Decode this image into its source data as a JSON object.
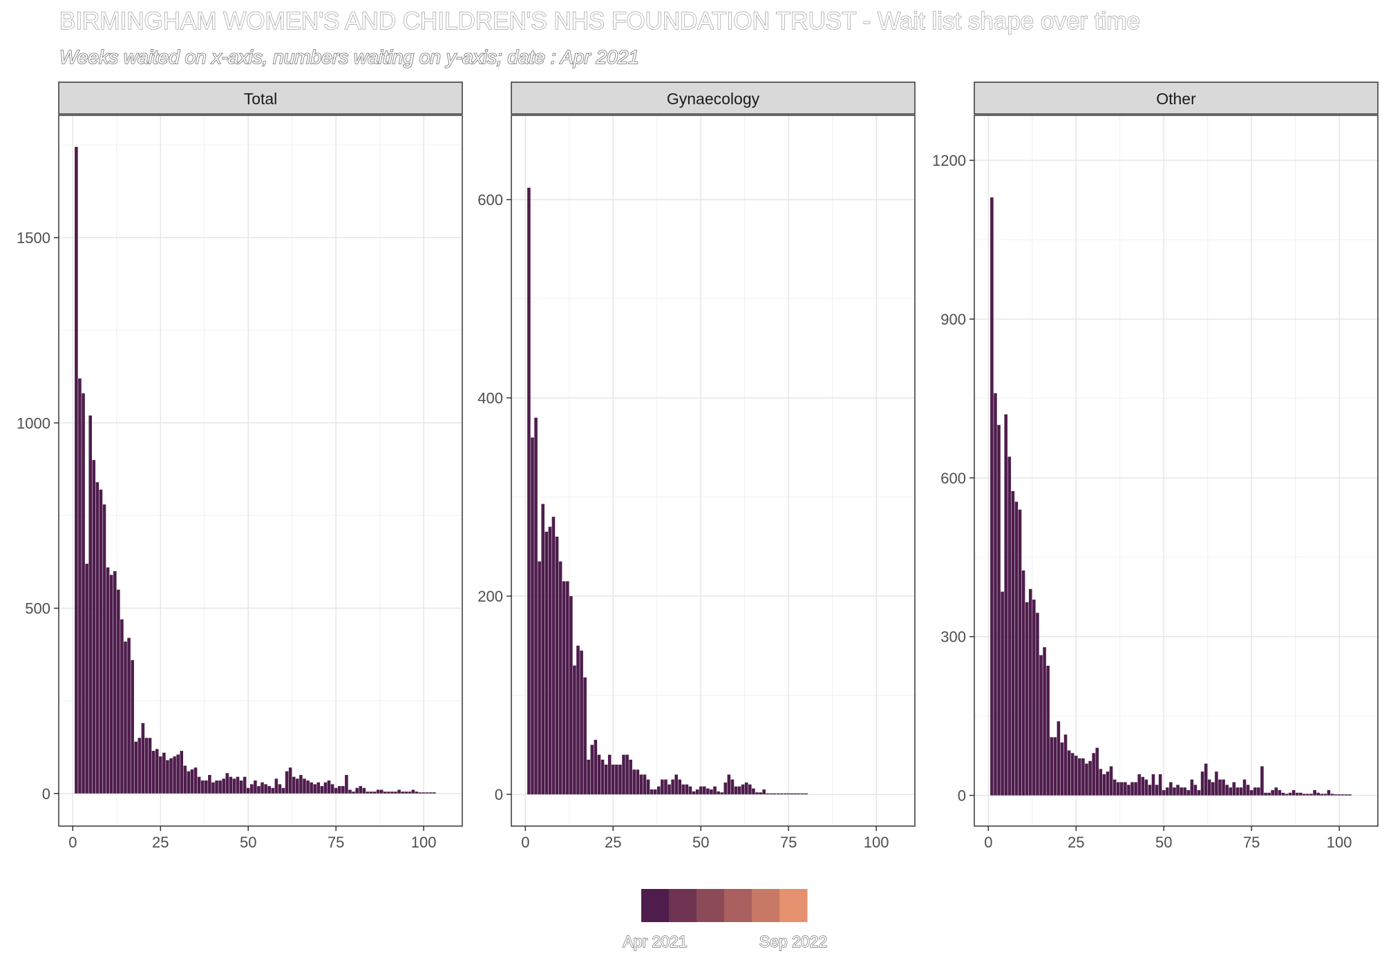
{
  "chart_data": {
    "type": "bar",
    "title": "BIRMINGHAM WOMEN'S AND CHILDREN'S NHS FOUNDATION TRUST - Wait list shape over time",
    "subtitle": "Weeks waited on x-axis, numbers waiting on y-axis; date : Apr 2021",
    "bar_color": "#4e1d4c",
    "legend": {
      "placement": "bottom",
      "colors": [
        "#4e1d4c",
        "#6e3452",
        "#8c4a58",
        "#a9605e",
        "#c77966",
        "#e5906e"
      ],
      "labels": [
        "Apr 2021",
        "Sep 2022"
      ]
    },
    "panels": [
      {
        "name": "Total",
        "xlim": [
          -4,
          111
        ],
        "ylim": [
          -88,
          1830
        ],
        "xticks": [
          0,
          25,
          50,
          75,
          100
        ],
        "yticks": [
          0,
          500,
          1000,
          1500
        ],
        "x": [
          1,
          2,
          3,
          4,
          5,
          6,
          7,
          8,
          9,
          10,
          11,
          12,
          13,
          14,
          15,
          16,
          17,
          18,
          19,
          20,
          21,
          22,
          23,
          24,
          25,
          26,
          27,
          28,
          29,
          30,
          31,
          32,
          33,
          34,
          35,
          36,
          37,
          38,
          39,
          40,
          41,
          42,
          43,
          44,
          45,
          46,
          47,
          48,
          49,
          50,
          51,
          52,
          53,
          54,
          55,
          56,
          57,
          58,
          59,
          60,
          61,
          62,
          63,
          64,
          65,
          66,
          67,
          68,
          69,
          70,
          71,
          72,
          73,
          74,
          75,
          76,
          77,
          78,
          79,
          80,
          81,
          82,
          83,
          84,
          85,
          86,
          87,
          88,
          89,
          90,
          91,
          92,
          93,
          94,
          95,
          96,
          97,
          98,
          99,
          100,
          101,
          102,
          103
        ],
        "values": [
          1745,
          1120,
          1080,
          620,
          1020,
          900,
          840,
          820,
          780,
          610,
          590,
          600,
          550,
          470,
          410,
          420,
          360,
          140,
          150,
          190,
          150,
          150,
          115,
          120,
          100,
          110,
          90,
          95,
          100,
          105,
          115,
          75,
          60,
          65,
          70,
          45,
          35,
          35,
          50,
          30,
          35,
          35,
          40,
          55,
          45,
          40,
          45,
          35,
          45,
          15,
          25,
          35,
          20,
          30,
          25,
          20,
          15,
          40,
          25,
          15,
          60,
          70,
          45,
          40,
          50,
          40,
          35,
          30,
          25,
          30,
          20,
          30,
          35,
          25,
          15,
          20,
          20,
          50,
          10,
          5,
          15,
          20,
          15,
          5,
          5,
          5,
          10,
          10,
          5,
          5,
          5,
          5,
          10,
          5,
          5,
          5,
          10,
          5,
          3,
          3,
          3,
          3,
          3
        ]
      },
      {
        "name": "Gynaecology",
        "xlim": [
          -4,
          111
        ],
        "ylim": [
          -32,
          685
        ],
        "xticks": [
          0,
          25,
          50,
          75,
          100
        ],
        "yticks": [
          0,
          200,
          400,
          600
        ],
        "x": [
          1,
          2,
          3,
          4,
          5,
          6,
          7,
          8,
          9,
          10,
          11,
          12,
          13,
          14,
          15,
          16,
          17,
          18,
          19,
          20,
          21,
          22,
          23,
          24,
          25,
          26,
          27,
          28,
          29,
          30,
          31,
          32,
          33,
          34,
          35,
          36,
          37,
          38,
          39,
          40,
          41,
          42,
          43,
          44,
          45,
          46,
          47,
          48,
          49,
          50,
          51,
          52,
          53,
          54,
          55,
          56,
          57,
          58,
          59,
          60,
          61,
          62,
          63,
          64,
          65,
          66,
          67,
          68,
          69,
          70,
          71,
          72,
          73,
          74,
          75,
          76,
          77,
          78,
          79,
          80
        ],
        "values": [
          612,
          360,
          380,
          235,
          293,
          265,
          270,
          280,
          260,
          235,
          215,
          215,
          200,
          130,
          150,
          145,
          118,
          35,
          50,
          55,
          40,
          35,
          30,
          40,
          30,
          30,
          30,
          40,
          40,
          35,
          25,
          25,
          20,
          20,
          15,
          5,
          5,
          8,
          15,
          15,
          10,
          15,
          20,
          15,
          10,
          10,
          8,
          3,
          5,
          8,
          8,
          6,
          5,
          8,
          3,
          2,
          12,
          20,
          15,
          8,
          8,
          10,
          12,
          10,
          6,
          2,
          2,
          5,
          1,
          1,
          1,
          1,
          1,
          1,
          1,
          1,
          1,
          1,
          1,
          1
        ]
      },
      {
        "name": "Other",
        "xlim": [
          -4,
          111
        ],
        "ylim": [
          -58,
          1285
        ],
        "xticks": [
          0,
          25,
          50,
          75,
          100
        ],
        "yticks": [
          0,
          300,
          600,
          900,
          1200
        ],
        "x": [
          1,
          2,
          3,
          4,
          5,
          6,
          7,
          8,
          9,
          10,
          11,
          12,
          13,
          14,
          15,
          16,
          17,
          18,
          19,
          20,
          21,
          22,
          23,
          24,
          25,
          26,
          27,
          28,
          29,
          30,
          31,
          32,
          33,
          34,
          35,
          36,
          37,
          38,
          39,
          40,
          41,
          42,
          43,
          44,
          45,
          46,
          47,
          48,
          49,
          50,
          51,
          52,
          53,
          54,
          55,
          56,
          57,
          58,
          59,
          60,
          61,
          62,
          63,
          64,
          65,
          66,
          67,
          68,
          69,
          70,
          71,
          72,
          73,
          74,
          75,
          76,
          77,
          78,
          79,
          80,
          81,
          82,
          83,
          84,
          85,
          86,
          87,
          88,
          89,
          90,
          91,
          92,
          93,
          94,
          95,
          96,
          97,
          98,
          99,
          100,
          101,
          102,
          103
        ],
        "values": [
          1130,
          760,
          700,
          385,
          720,
          640,
          575,
          555,
          540,
          425,
          365,
          390,
          370,
          345,
          265,
          280,
          245,
          110,
          110,
          140,
          100,
          115,
          85,
          80,
          75,
          70,
          70,
          60,
          65,
          80,
          90,
          50,
          40,
          45,
          55,
          30,
          25,
          25,
          25,
          20,
          25,
          25,
          40,
          35,
          30,
          20,
          40,
          20,
          40,
          10,
          15,
          25,
          15,
          20,
          15,
          15,
          10,
          30,
          20,
          10,
          45,
          60,
          30,
          25,
          45,
          30,
          30,
          20,
          15,
          25,
          15,
          15,
          30,
          20,
          10,
          15,
          15,
          55,
          5,
          5,
          10,
          15,
          10,
          5,
          3,
          5,
          10,
          5,
          5,
          3,
          3,
          3,
          10,
          5,
          3,
          3,
          10,
          3,
          2,
          2,
          2,
          2,
          2
        ]
      }
    ]
  }
}
